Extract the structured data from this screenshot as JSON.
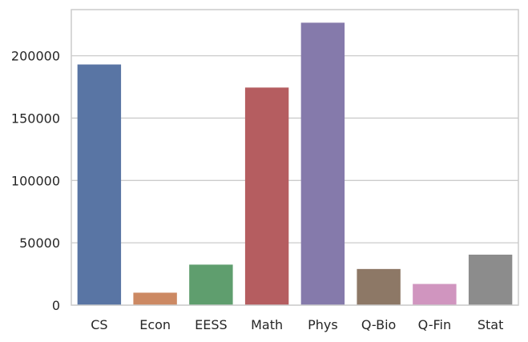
{
  "chart_data": {
    "type": "bar",
    "categories": [
      "CS",
      "Econ",
      "EESS",
      "Math",
      "Phys",
      "Q-Bio",
      "Q-Fin",
      "Stat"
    ],
    "values": [
      193000,
      10000,
      32500,
      174500,
      226500,
      29000,
      17000,
      40500
    ],
    "colors": [
      "#5975a4",
      "#cc8963",
      "#5f9e6e",
      "#b55d60",
      "#857aab",
      "#8d7866",
      "#d095bf",
      "#8c8c8c"
    ],
    "yticks": [
      0,
      50000,
      100000,
      150000,
      200000
    ],
    "ylim": [
      0,
      237000
    ],
    "title": "",
    "xlabel": "",
    "ylabel": "",
    "grid": true
  }
}
